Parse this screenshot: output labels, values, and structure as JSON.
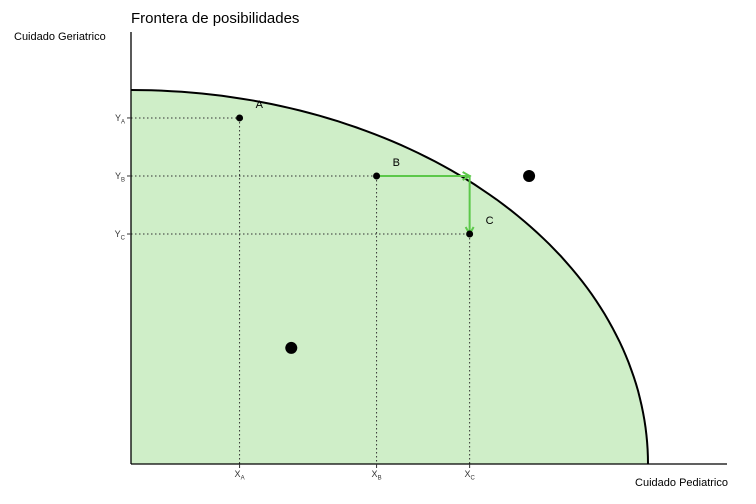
{
  "chart_data": {
    "type": "area",
    "title": "Frontera de posibilidades",
    "xlabel": "Cuidado Pediatrico",
    "ylabel": "Cuidado Geriatrico",
    "grid": false,
    "colors": {
      "fill": "#cfeec8",
      "curve": "#000000",
      "guides": "#333333",
      "arrow": "#5cc84a",
      "points": "#000000"
    },
    "frontier": {
      "intercept_y": 0.87,
      "intercept_x": 1.0
    },
    "points": [
      {
        "label": "A",
        "x": 0.21,
        "y": 0.805
      },
      {
        "label": "B",
        "x": 0.475,
        "y": 0.67
      },
      {
        "label": "C",
        "x": 0.655,
        "y": 0.535
      }
    ],
    "x_ticks": [
      {
        "base": "X",
        "sub": "A",
        "x": 0.21
      },
      {
        "base": "X",
        "sub": "B",
        "x": 0.475
      },
      {
        "base": "X",
        "sub": "C",
        "x": 0.655
      }
    ],
    "y_ticks": [
      {
        "base": "Y",
        "sub": "A",
        "y": 0.805
      },
      {
        "base": "Y",
        "sub": "B",
        "y": 0.67
      },
      {
        "base": "Y",
        "sub": "C",
        "y": 0.535
      }
    ],
    "extra_points": [
      {
        "x": 0.77,
        "y": 0.67
      },
      {
        "x": 0.31,
        "y": 0.27
      }
    ],
    "arrow_path": [
      {
        "x": 0.475,
        "y": 0.67
      },
      {
        "x": 0.655,
        "y": 0.67
      },
      {
        "x": 0.655,
        "y": 0.535
      }
    ]
  }
}
